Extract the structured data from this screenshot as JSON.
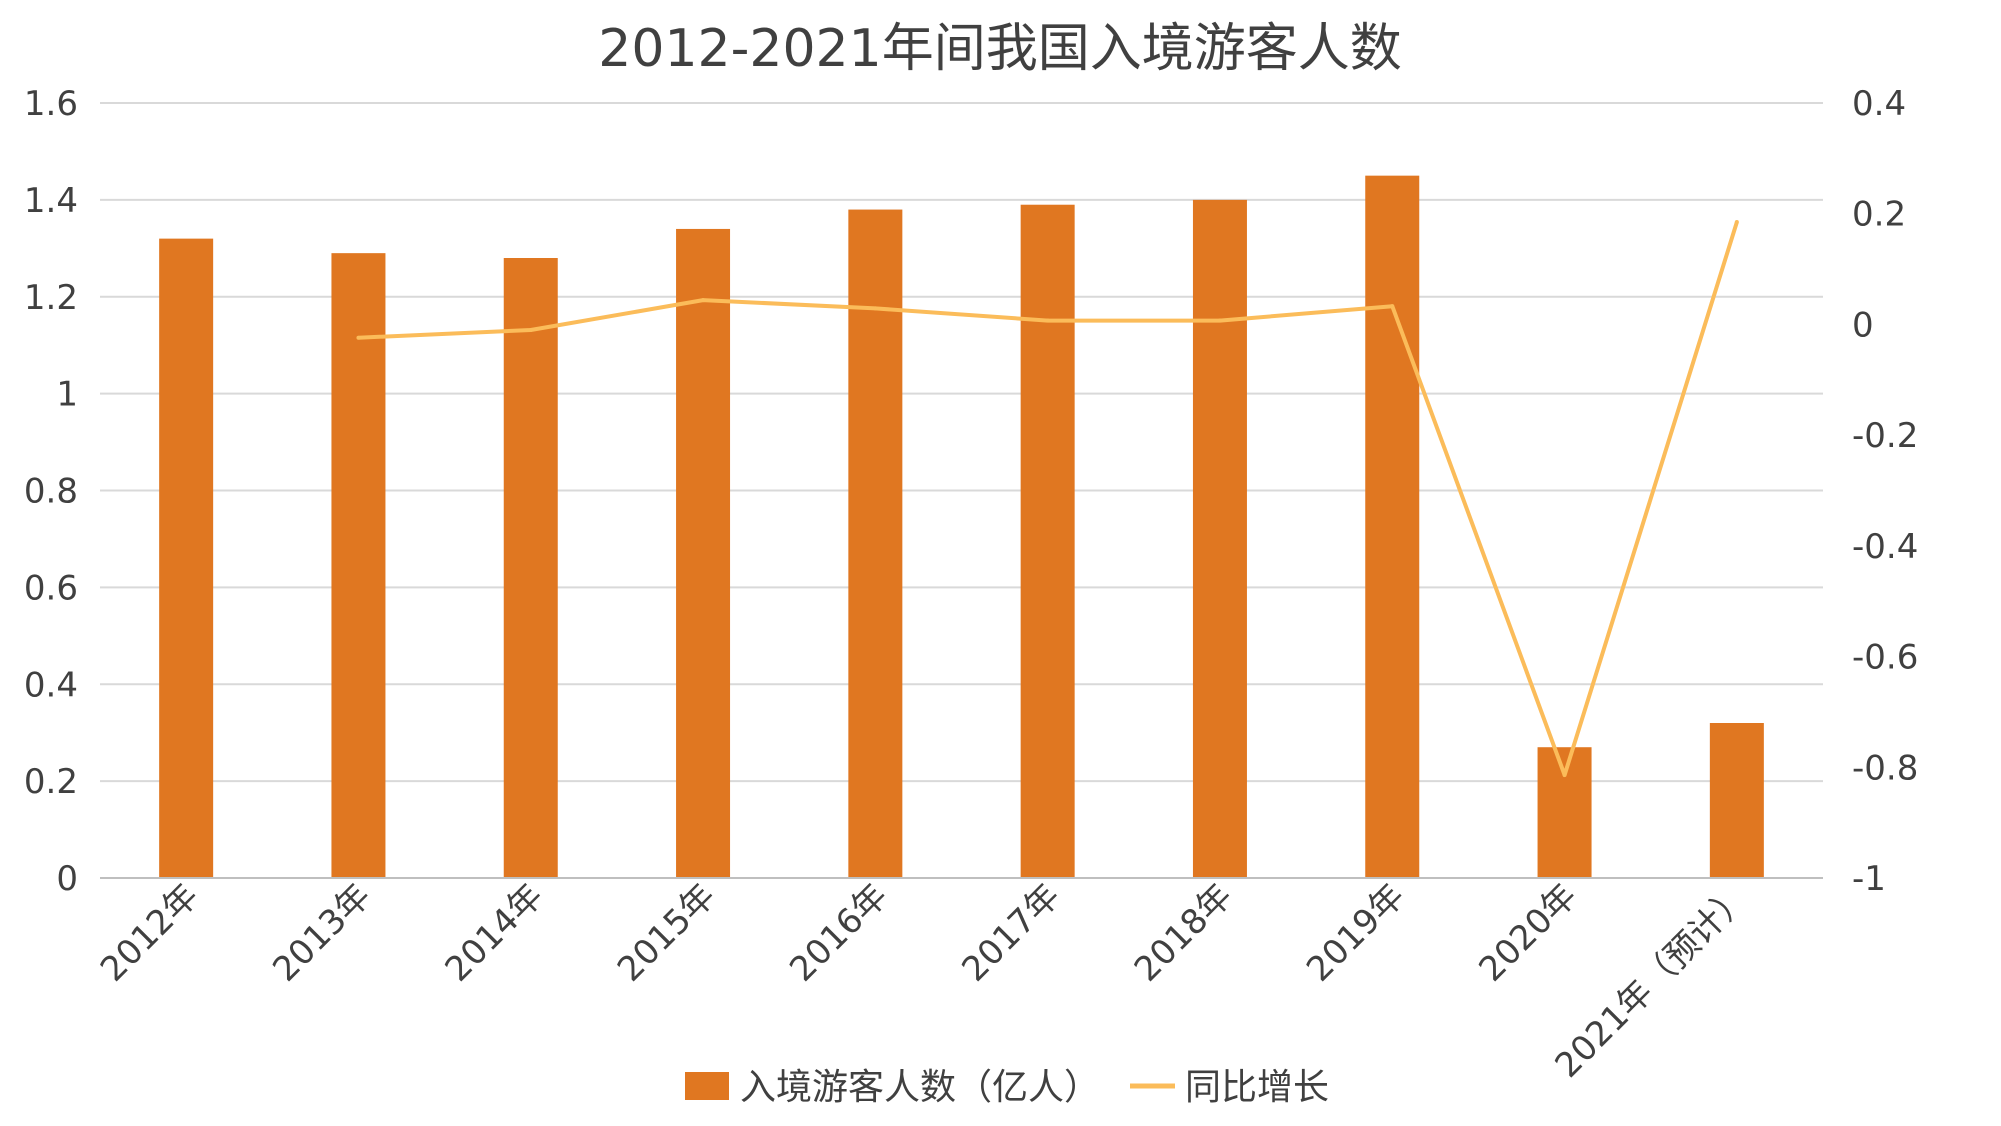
{
  "chart_data": {
    "type": "bar",
    "title": "2012-2021年间我国入境游客人数",
    "categories": [
      "2012年",
      "2013年",
      "2014年",
      "2015年",
      "2016年",
      "2017年",
      "2018年",
      "2019年",
      "2020年",
      "2021年（预计）"
    ],
    "series": [
      {
        "name": "入境游客人数（亿人）",
        "type": "bar",
        "axis": "left",
        "color": "#E07721",
        "values": [
          1.32,
          1.29,
          1.28,
          1.34,
          1.38,
          1.39,
          1.4,
          1.45,
          0.27,
          0.32
        ]
      },
      {
        "name": "同比增长",
        "type": "line",
        "axis": "right",
        "color": "#FBBC5A",
        "values": [
          null,
          -0.024,
          -0.01,
          0.044,
          0.029,
          0.007,
          0.007,
          0.033,
          -0.814,
          0.185
        ]
      }
    ],
    "y_left": {
      "ylim": [
        0,
        1.6
      ],
      "ticks": [
        "0",
        "0.2",
        "0.4",
        "0.6",
        "0.8",
        "1",
        "1.2",
        "1.4",
        "1.6"
      ]
    },
    "y_right": {
      "ylim": [
        -1,
        0.4
      ],
      "ticks": [
        "-1",
        "-0.8",
        "-0.6",
        "-0.4",
        "-0.2",
        "0",
        "0.2",
        "0.4"
      ]
    },
    "grid": true,
    "legend_position": "bottom"
  }
}
